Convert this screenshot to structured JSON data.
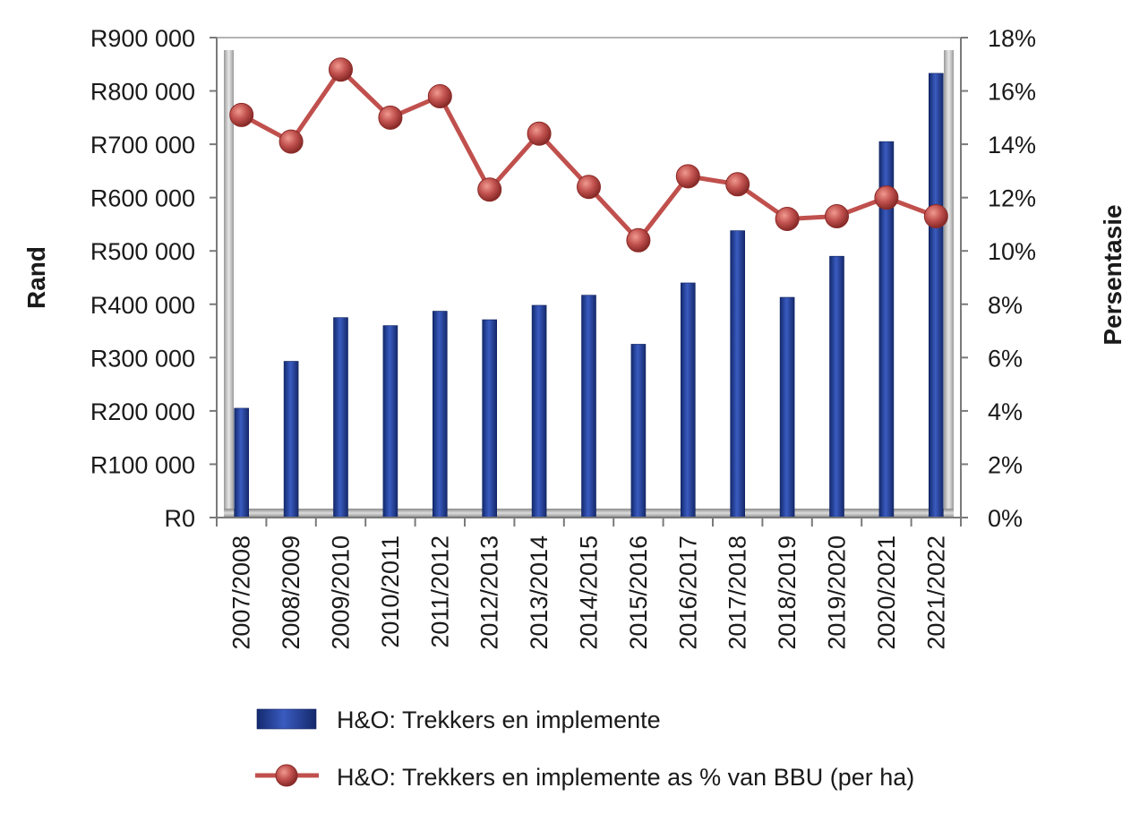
{
  "chart_data": {
    "type": "bar",
    "categories": [
      "2007/2008",
      "2008/2009",
      "2009/2010",
      "2010/2011",
      "2011/2012",
      "2012/2013",
      "2013/2014",
      "2014/2015",
      "2015/2016",
      "2016/2017",
      "2017/2018",
      "2018/2019",
      "2019/2020",
      "2020/2021",
      "2021/2022"
    ],
    "series": [
      {
        "name": "H&O: Trekkers en implemente",
        "type": "bar",
        "axis": "left",
        "color": "#1f3a8f",
        "values": [
          205000,
          293000,
          375000,
          360000,
          387000,
          371000,
          398000,
          417000,
          325000,
          440000,
          538000,
          413000,
          490000,
          705000,
          833000
        ]
      },
      {
        "name": "H&O: Trekkers en implemente as % van BBU (per ha)",
        "type": "line",
        "axis": "right",
        "color": "#c0504d",
        "values": [
          15.1,
          14.1,
          16.8,
          15.0,
          15.8,
          12.3,
          14.4,
          12.4,
          10.4,
          12.8,
          12.5,
          11.2,
          11.3,
          12.0,
          11.3
        ]
      }
    ],
    "ylabel": "Rand",
    "y2label": "Persentasie",
    "ylim": [
      0,
      900000
    ],
    "y2lim": [
      0,
      18
    ],
    "yticks": [
      "R0",
      "R100 000",
      "R200 000",
      "R300 000",
      "R400 000",
      "R500 000",
      "R600 000",
      "R700 000",
      "R800 000",
      "R900 000"
    ],
    "y2ticks": [
      "0%",
      "2%",
      "4%",
      "6%",
      "8%",
      "10%",
      "12%",
      "14%",
      "16%",
      "18%"
    ],
    "grid": false,
    "legend_position": "bottom"
  }
}
